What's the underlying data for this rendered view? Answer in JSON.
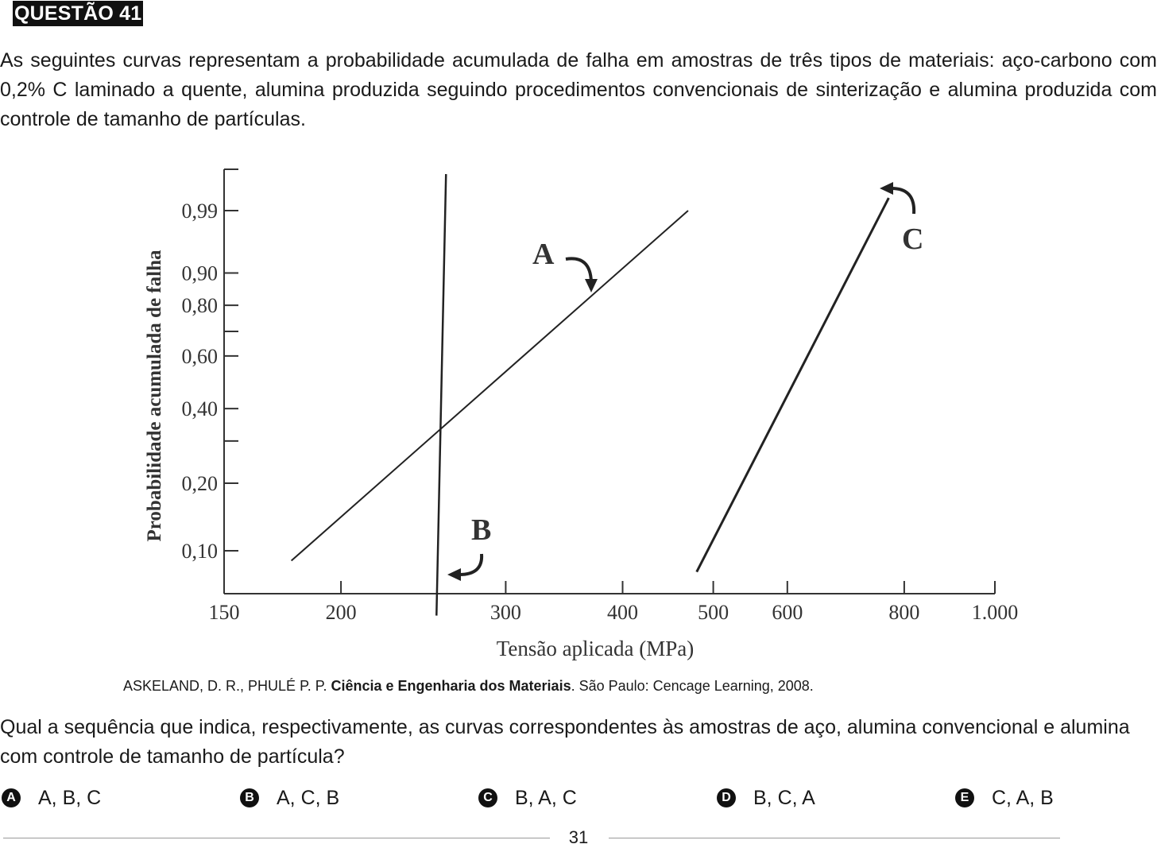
{
  "question": {
    "title": "QUESTÃO 41",
    "stem": "As seguintes curvas representam a probabilidade acumulada de falha em amostras de três tipos de materiais: aço-carbono com 0,2% C laminado a quente, alumina produzida seguindo procedimentos convencionais de sinterização e alumina produzida com controle de tamanho de partículas.",
    "caption": {
      "authors": "ASKELAND, D. R., PHULÉ P. P.",
      "book": "Ciência e Engenharia dos Materiais",
      "rest": ". São Paulo: Cencage Learning, 2008."
    },
    "prompt": "Qual a sequência que indica, respectivamente, as curvas correspondentes às amostras de aço, alumina convencional e alumina com controle de tamanho de partícula?",
    "alternatives": [
      {
        "letter": "A",
        "text": "A, B, C"
      },
      {
        "letter": "B",
        "text": "A, C, B"
      },
      {
        "letter": "C",
        "text": "B, A, C"
      },
      {
        "letter": "D",
        "text": "B, C, A"
      },
      {
        "letter": "E",
        "text": "C, A, B"
      }
    ],
    "page_number": "31"
  },
  "chart_data": {
    "type": "line",
    "title": "",
    "xlabel": "Tensão aplicada (MPa)",
    "ylabel": "Probabilidade acumulada de falha",
    "x_scale": "log",
    "y_scale": "weibull-probability",
    "x_ticks": [
      {
        "value": 150,
        "label": "150"
      },
      {
        "value": 200,
        "label": "200"
      },
      {
        "value": 300,
        "label": "300"
      },
      {
        "value": 400,
        "label": "400"
      },
      {
        "value": 500,
        "label": "500"
      },
      {
        "value": 600,
        "label": "600"
      },
      {
        "value": 800,
        "label": "800"
      },
      {
        "value": 1000,
        "label": "1.000"
      }
    ],
    "y_ticks": [
      {
        "value": 0.99,
        "label": "0,99"
      },
      {
        "value": 0.9,
        "label": "0,90"
      },
      {
        "value": 0.8,
        "label": "0,80"
      },
      {
        "value": 0.7,
        "label": ""
      },
      {
        "value": 0.6,
        "label": "0,60"
      },
      {
        "value": 0.4,
        "label": "0,40"
      },
      {
        "value": 0.3,
        "label": ""
      },
      {
        "value": 0.2,
        "label": "0,20"
      },
      {
        "value": 0.1,
        "label": "0,10"
      }
    ],
    "series": [
      {
        "name": "A",
        "points": [
          [
            177,
            0.09
          ],
          [
            470,
            0.99
          ]
        ]
      },
      {
        "name": "B",
        "points": [
          [
            253,
            0.05
          ],
          [
            259,
            0.999
          ]
        ]
      },
      {
        "name": "C",
        "points": [
          [
            480,
            0.08
          ],
          [
            770,
            0.995
          ]
        ]
      }
    ]
  }
}
